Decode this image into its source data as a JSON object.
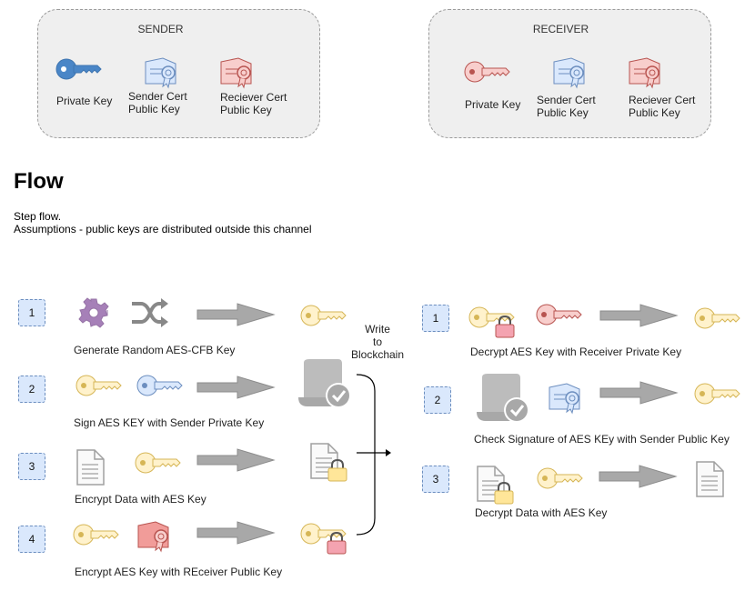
{
  "sender": {
    "title": "SENDER",
    "private_key": "Private Key",
    "sender_cert": [
      "Sender Cert",
      "Public Key"
    ],
    "receiver_cert": [
      "Reciever Cert",
      "Public Key"
    ]
  },
  "receiver": {
    "title": "RECEIVER",
    "private_key": "Private Key",
    "sender_cert": [
      "Sender Cert",
      "Public Key"
    ],
    "receiver_cert": [
      "Reciever Cert",
      "Public Key"
    ]
  },
  "flow": {
    "title": "Flow",
    "desc1": "Step flow.",
    "desc2": "Assumptions - public keys are distributed outside this channel"
  },
  "left_steps": [
    {
      "num": "1",
      "label": "Generate Random AES-CFB Key"
    },
    {
      "num": "2",
      "label": "Sign AES KEY with Sender Private Key"
    },
    {
      "num": "3",
      "label": "Encrypt Data with AES Key"
    },
    {
      "num": "4",
      "label": "Encrypt AES Key with REceiver Public Key"
    }
  ],
  "blockchain": [
    "Write",
    "to",
    "Blockchain"
  ],
  "right_steps": [
    {
      "num": "1",
      "label": "Decrypt AES Key with Receiver Private Key"
    },
    {
      "num": "2",
      "label": "Check Signature of AES KEy with Sender Public Key"
    },
    {
      "num": "3",
      "label": "Decrypt Data with AES Key"
    }
  ],
  "colors": {
    "blue_key": "#4a86c7",
    "light_blue_key": "#b8d1ee",
    "pink_key": "#f3c3c3",
    "red_cert": "#f0a0a0",
    "yellow_key": "#fff2b3",
    "yellow_stroke": "#d6b656",
    "lock": "#f4a3b0",
    "lock_yellow": "#ffe699",
    "gray": "#a8a8a8",
    "step_fill": "#dae8fc",
    "gear": "#a680b8"
  }
}
